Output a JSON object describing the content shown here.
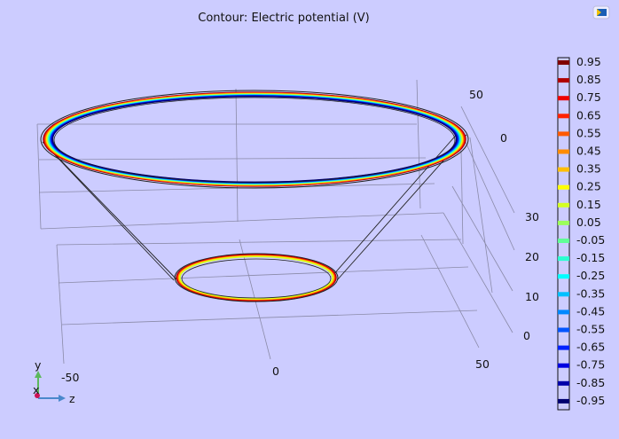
{
  "chart_data": {
    "type": "contour",
    "title": "Contour: Electric potential (V)",
    "axes_3d": {
      "x_label": "x",
      "y_label": "y",
      "z_label": "z",
      "z_ticks": [
        "-50",
        "0",
        "50"
      ],
      "y_ticks": [
        "0",
        "10",
        "20",
        "30"
      ],
      "x_ticks": [
        "0",
        "50"
      ]
    },
    "legend": {
      "placement": "right",
      "levels": [
        0.95,
        0.85,
        0.75,
        0.65,
        0.55,
        0.45,
        0.35,
        0.25,
        0.15,
        0.05,
        -0.05,
        -0.15,
        -0.25,
        -0.35,
        -0.45,
        -0.55,
        -0.65,
        -0.75,
        -0.85,
        -0.95
      ],
      "labels": [
        "0.95",
        "0.85",
        "0.75",
        "0.65",
        "0.55",
        "0.45",
        "0.35",
        "0.25",
        "0.15",
        "0.05",
        "-0.05",
        "-0.15",
        "-0.25",
        "-0.35",
        "-0.45",
        "-0.55",
        "-0.65",
        "-0.75",
        "-0.85",
        "-0.95"
      ],
      "colors": [
        "#800000",
        "#b00000",
        "#ee0000",
        "#ff2200",
        "#ff5a00",
        "#ff8c00",
        "#ffbe00",
        "#ffff00",
        "#d4ff22",
        "#9cff5a",
        "#60ff96",
        "#2affd0",
        "#00ffff",
        "#00c0ff",
        "#0088ff",
        "#0055ff",
        "#0022ff",
        "#0000e0",
        "#0000a8",
        "#000070"
      ]
    },
    "background_color": "#ccccff"
  },
  "logo": "comsol-logo-icon"
}
